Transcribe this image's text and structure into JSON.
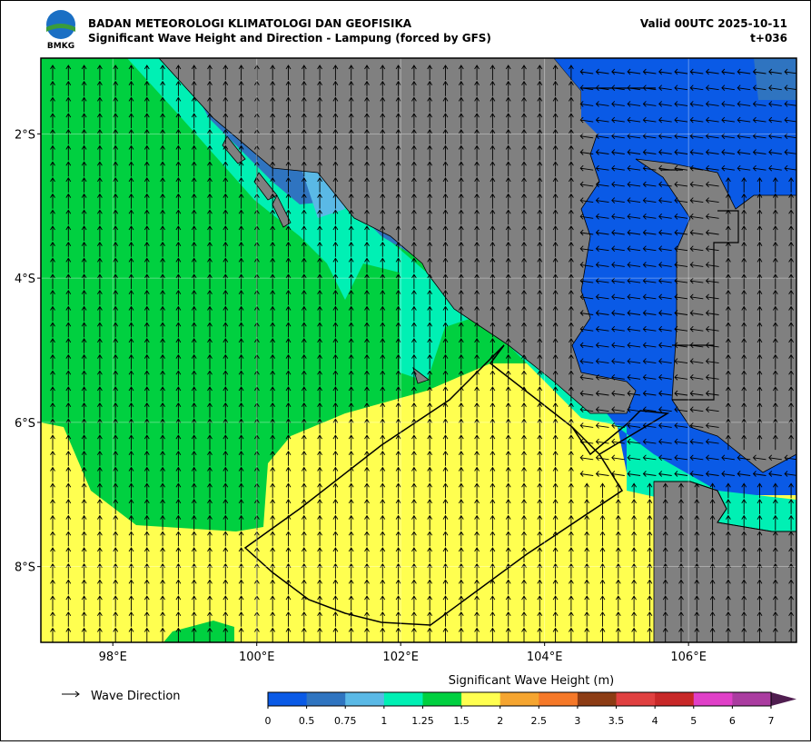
{
  "header": {
    "logo_text": "BMKG",
    "title": "BADAN METEOROLOGI KLIMATOLOGI DAN GEOFISIKA",
    "subtitle": "Significant Wave Height and Direction - Lampung (forced by GFS)",
    "valid": "Valid 00UTC 2025-10-11",
    "step": "t+036"
  },
  "map": {
    "lon_range": [
      97,
      107.5
    ],
    "lat_range": [
      -9.05,
      -0.95
    ],
    "lon_ticks": [
      {
        "value": 98,
        "label": "98°E"
      },
      {
        "value": 100,
        "label": "100°E"
      },
      {
        "value": 102,
        "label": "102°E"
      },
      {
        "value": 104,
        "label": "104°E"
      },
      {
        "value": 106,
        "label": "106°E"
      }
    ],
    "lat_ticks": [
      {
        "value": -2,
        "label": "2°S"
      },
      {
        "value": -4,
        "label": "4°S"
      },
      {
        "value": -6,
        "label": "6°S"
      },
      {
        "value": -8,
        "label": "8°S"
      }
    ]
  },
  "legend": {
    "label": "Wave Direction"
  },
  "colorbar": {
    "title": "Significant Wave Height (m)",
    "levels": [
      0,
      0.5,
      0.75,
      1,
      1.25,
      1.5,
      2,
      2.5,
      3,
      3.5,
      4,
      5,
      6,
      7
    ],
    "colors": [
      "#0a5ae6",
      "#2f74c0",
      "#5ab9e6",
      "#00f0b4",
      "#00d040",
      "#ffff50",
      "#f5a530",
      "#f57828",
      "#8c3c14",
      "#e04040",
      "#c82828",
      "#e040c8",
      "#aa3ca0"
    ],
    "extend_color": "#501e50"
  }
}
